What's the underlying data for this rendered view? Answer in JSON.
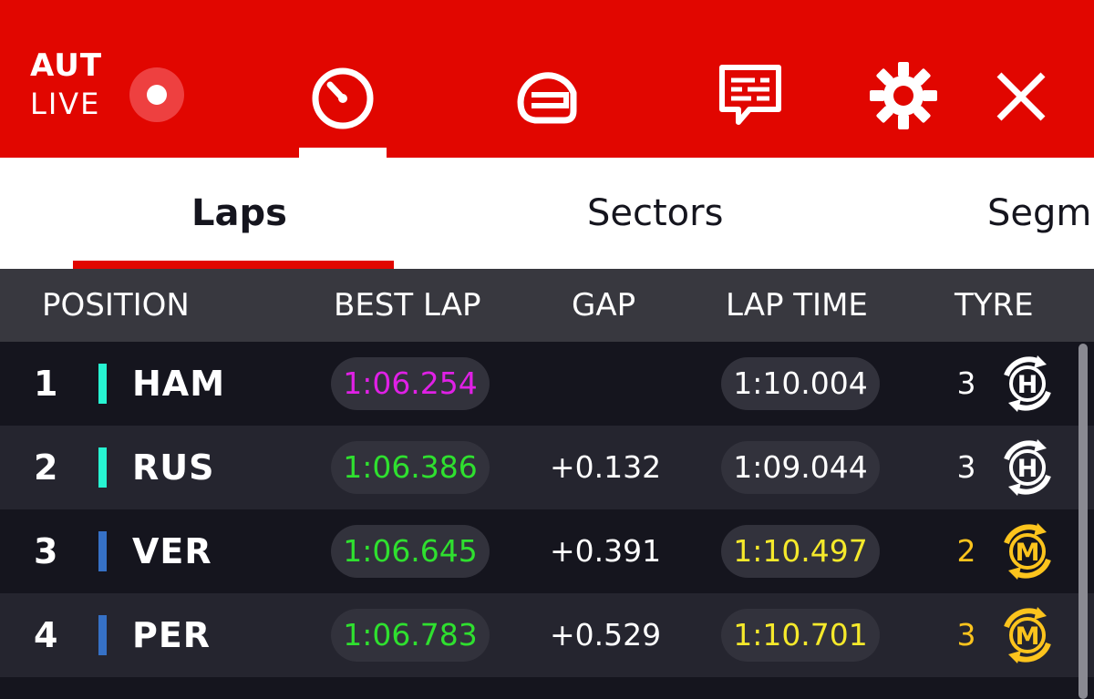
{
  "header": {
    "session_code": "AUT",
    "session_status": "LIVE",
    "nav_icons": [
      "stopwatch-icon",
      "helmet-icon",
      "messages-icon",
      "gear-icon",
      "close-icon"
    ],
    "accent_color": "#e10600"
  },
  "tabs": [
    {
      "label": "Laps",
      "active": true
    },
    {
      "label": "Sectors",
      "active": false
    },
    {
      "label": "Segm",
      "active": false
    }
  ],
  "columns": {
    "position": "POSITION",
    "best_lap": "BEST LAP",
    "gap": "GAP",
    "lap_time": "LAP TIME",
    "tyre": "TYRE"
  },
  "rows": [
    {
      "position": "1",
      "driver": "HAM",
      "team_color": "#27f4d2",
      "best_lap": "1:06.254",
      "best_lap_color": "#e020e6",
      "gap": "",
      "lap_time": "1:10.004",
      "lap_time_color": "#ffffff",
      "tyre_laps": "3",
      "tyre_compound": "H",
      "tyre_color": "#ffffff"
    },
    {
      "position": "2",
      "driver": "RUS",
      "team_color": "#27f4d2",
      "best_lap": "1:06.386",
      "best_lap_color": "#2fe02f",
      "gap": "+0.132",
      "lap_time": "1:09.044",
      "lap_time_color": "#ffffff",
      "tyre_laps": "3",
      "tyre_compound": "H",
      "tyre_color": "#ffffff"
    },
    {
      "position": "3",
      "driver": "VER",
      "team_color": "#3671c6",
      "best_lap": "1:06.645",
      "best_lap_color": "#2fe02f",
      "gap": "+0.391",
      "lap_time": "1:10.497",
      "lap_time_color": "#f5e92b",
      "tyre_laps": "2",
      "tyre_compound": "M",
      "tyre_color": "#fcc41d"
    },
    {
      "position": "4",
      "driver": "PER",
      "team_color": "#3671c6",
      "best_lap": "1:06.783",
      "best_lap_color": "#2fe02f",
      "gap": "+0.529",
      "lap_time": "1:10.701",
      "lap_time_color": "#f5e92b",
      "tyre_laps": "3",
      "tyre_compound": "M",
      "tyre_color": "#fcc41d"
    }
  ]
}
